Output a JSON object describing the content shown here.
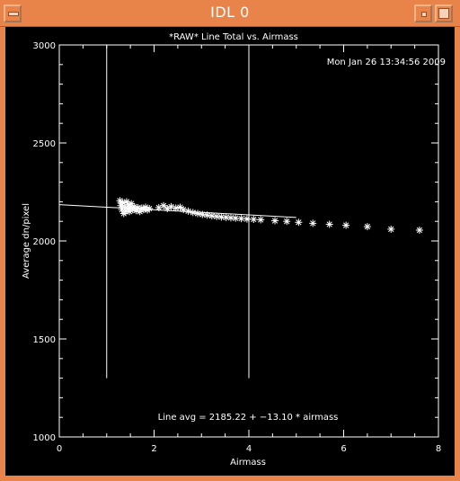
{
  "window": {
    "title": "IDL 0"
  },
  "timestamp": "Mon Jan 26 13:34:56 2009",
  "fit_label": "Line avg = 2185.22 + −13.10 * airmass",
  "colors": {
    "frame": "#e8844a",
    "background": "#000000",
    "foreground": "#ffffff"
  },
  "chart_data": {
    "type": "scatter",
    "title": "*RAW* Line Total vs. Airmass",
    "xlabel": "Airmass",
    "ylabel": "Average dn/pixel",
    "xlim": [
      0,
      8
    ],
    "ylim": [
      1000,
      3000
    ],
    "xticks": [
      0,
      2,
      4,
      6,
      8
    ],
    "yticks": [
      1000,
      1500,
      2000,
      2500,
      3000
    ],
    "xtick_labels": [
      "0",
      "2",
      "4",
      "6",
      "8"
    ],
    "ytick_labels": [
      "1000",
      "1500",
      "2000",
      "2500",
      "3000"
    ],
    "grid": false,
    "marker": "asterisk",
    "fit_line": {
      "intercept": 2185.22,
      "slope": -13.1,
      "x_range": [
        0,
        5
      ]
    },
    "vertical_lines": [
      {
        "x": 1.0,
        "y_range": [
          1300,
          3000
        ]
      },
      {
        "x": 4.0,
        "y_range": [
          1300,
          3000
        ]
      }
    ],
    "points": [
      {
        "x": 1.28,
        "y": 2205
      },
      {
        "x": 1.3,
        "y": 2180
      },
      {
        "x": 1.32,
        "y": 2160
      },
      {
        "x": 1.34,
        "y": 2195
      },
      {
        "x": 1.36,
        "y": 2140
      },
      {
        "x": 1.38,
        "y": 2175
      },
      {
        "x": 1.4,
        "y": 2150
      },
      {
        "x": 1.42,
        "y": 2200
      },
      {
        "x": 1.44,
        "y": 2165
      },
      {
        "x": 1.46,
        "y": 2185
      },
      {
        "x": 1.48,
        "y": 2150
      },
      {
        "x": 1.5,
        "y": 2170
      },
      {
        "x": 1.52,
        "y": 2190
      },
      {
        "x": 1.55,
        "y": 2160
      },
      {
        "x": 1.58,
        "y": 2175
      },
      {
        "x": 1.62,
        "y": 2155
      },
      {
        "x": 1.66,
        "y": 2170
      },
      {
        "x": 1.7,
        "y": 2150
      },
      {
        "x": 1.74,
        "y": 2168
      },
      {
        "x": 1.78,
        "y": 2160
      },
      {
        "x": 1.82,
        "y": 2172
      },
      {
        "x": 1.86,
        "y": 2158
      },
      {
        "x": 1.9,
        "y": 2165
      },
      {
        "x": 2.1,
        "y": 2170
      },
      {
        "x": 2.2,
        "y": 2180
      },
      {
        "x": 2.28,
        "y": 2165
      },
      {
        "x": 2.36,
        "y": 2175
      },
      {
        "x": 2.46,
        "y": 2168
      },
      {
        "x": 2.55,
        "y": 2172
      },
      {
        "x": 2.62,
        "y": 2160
      },
      {
        "x": 2.72,
        "y": 2152
      },
      {
        "x": 2.82,
        "y": 2145
      },
      {
        "x": 2.92,
        "y": 2140
      },
      {
        "x": 3.02,
        "y": 2135
      },
      {
        "x": 3.12,
        "y": 2132
      },
      {
        "x": 3.22,
        "y": 2128
      },
      {
        "x": 3.32,
        "y": 2125
      },
      {
        "x": 3.42,
        "y": 2122
      },
      {
        "x": 3.52,
        "y": 2120
      },
      {
        "x": 3.62,
        "y": 2118
      },
      {
        "x": 3.72,
        "y": 2116
      },
      {
        "x": 3.84,
        "y": 2114
      },
      {
        "x": 3.96,
        "y": 2112
      },
      {
        "x": 4.1,
        "y": 2110
      },
      {
        "x": 4.25,
        "y": 2108
      },
      {
        "x": 4.55,
        "y": 2103
      },
      {
        "x": 4.8,
        "y": 2100
      },
      {
        "x": 5.05,
        "y": 2095
      },
      {
        "x": 5.35,
        "y": 2090
      },
      {
        "x": 5.7,
        "y": 2085
      },
      {
        "x": 6.05,
        "y": 2080
      },
      {
        "x": 6.5,
        "y": 2073
      },
      {
        "x": 7.0,
        "y": 2060
      },
      {
        "x": 7.6,
        "y": 2055
      }
    ]
  }
}
